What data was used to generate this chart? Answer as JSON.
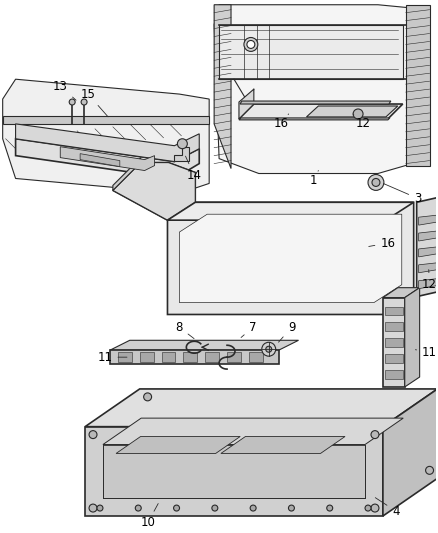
{
  "background_color": "#ffffff",
  "line_color": "#2a2a2a",
  "label_color": "#000000",
  "label_fontsize": 8.5,
  "fig_width": 4.38,
  "fig_height": 5.33,
  "dpi": 100
}
